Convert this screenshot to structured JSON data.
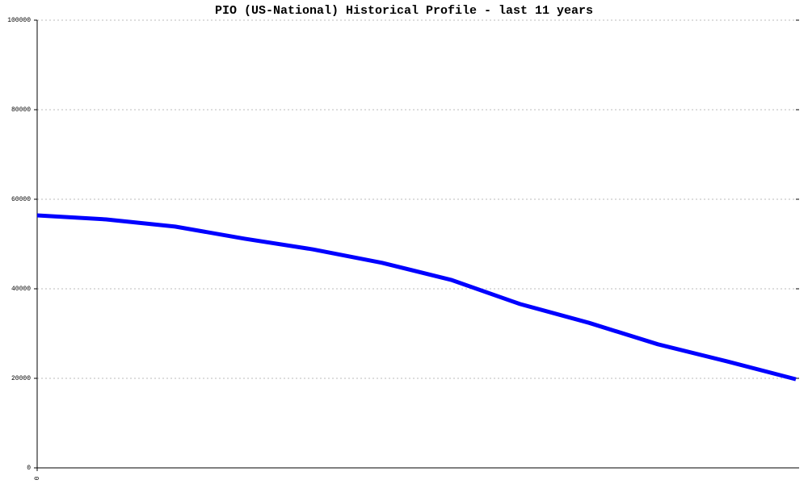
{
  "chart_data": {
    "type": "line",
    "title": "PIO (US-National) Historical Profile - last 11 years",
    "x": [
      0,
      1,
      2,
      3,
      4,
      5,
      6,
      7,
      8,
      9,
      10,
      11
    ],
    "series": [
      {
        "color": "#0000ff",
        "values": [
          56400,
          55500,
          53900,
          51200,
          48800,
          45800,
          42000,
          36600,
          32400,
          27600,
          23800,
          19800
        ]
      }
    ],
    "xlim": [
      0,
      11
    ],
    "xticks": [
      0
    ],
    "ylim": [
      0,
      100000
    ],
    "yticks": [
      0,
      20000,
      40000,
      60000,
      80000,
      100000
    ],
    "grid": true
  }
}
